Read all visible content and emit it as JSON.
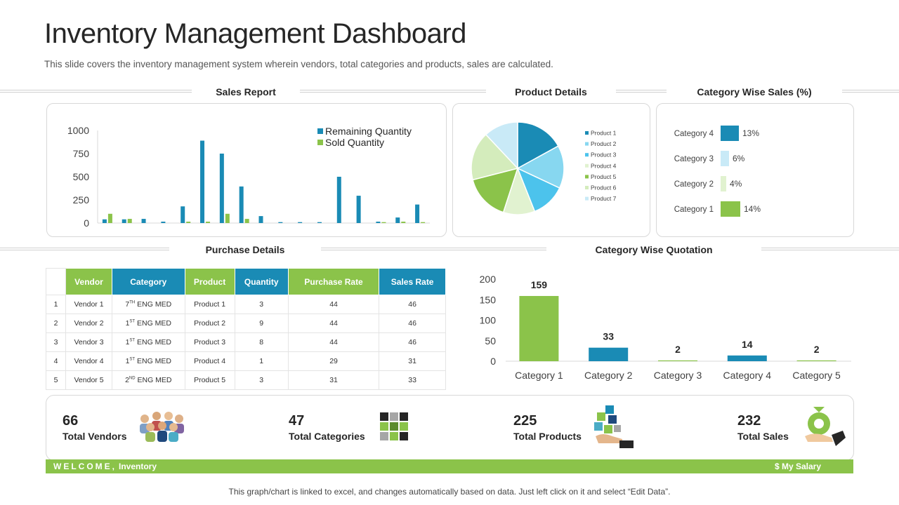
{
  "header": {
    "title": "Inventory Management Dashboard",
    "subtitle": "This slide covers the inventory management system wherein vendors, total categories and products, sales are calculated."
  },
  "sections": {
    "sales_report": "Sales Report",
    "product_details": "Product Details",
    "category_sales": "Category Wise Sales (%)",
    "purchase_details": "Purchase Details",
    "category_quotation": "Category Wise Quotation"
  },
  "colors": {
    "green": "#8bc34a",
    "blue": "#1a8bb5"
  },
  "chart_data": [
    {
      "type": "bar",
      "title": "",
      "ylim": [
        0,
        1000
      ],
      "yticks": [
        "1000",
        "750",
        "500",
        "250",
        "0"
      ],
      "legend_position": "top-right",
      "series": [
        {
          "name": "Remaining Quantity",
          "color": "#1a8bb5",
          "values": [
            40,
            40,
            45,
            15,
            180,
            890,
            750,
            395,
            75,
            10,
            10,
            10,
            500,
            295,
            15,
            60,
            200
          ]
        },
        {
          "name": "Sold Quantity",
          "color": "#8bc34a",
          "values": [
            100,
            45,
            0,
            0,
            15,
            15,
            100,
            45,
            0,
            0,
            0,
            0,
            0,
            0,
            10,
            15,
            10
          ]
        }
      ]
    },
    {
      "type": "pie",
      "legend_position": "right",
      "slices": [
        {
          "label": "Product 1",
          "value": 17,
          "color": "#1a8bb5"
        },
        {
          "label": "Product 2",
          "value": 15,
          "color": "#87d7f0"
        },
        {
          "label": "Product 3",
          "value": 12,
          "color": "#4cc3ec"
        },
        {
          "label": "Product 4",
          "value": 11,
          "color": "#e1f2d0"
        },
        {
          "label": "Product 5",
          "value": 16,
          "color": "#8bc34a"
        },
        {
          "label": "Product 6",
          "value": 17,
          "color": "#d4ecbc"
        },
        {
          "label": "Product 7",
          "value": 12,
          "color": "#c9eaf7"
        }
      ]
    },
    {
      "type": "bar",
      "orientation": "horizontal",
      "categories": [
        "Category 4",
        "Category 3",
        "Category 2",
        "Category 1"
      ],
      "values": [
        13,
        6,
        4,
        14
      ],
      "labels": [
        "13%",
        "6%",
        "4%",
        "14%"
      ],
      "colors": [
        "#1a8bb5",
        "#c9eaf7",
        "#e1f2d0",
        "#8bc34a"
      ]
    },
    {
      "type": "bar",
      "categories": [
        "Category 1",
        "Category 2",
        "Category 3",
        "Category 4",
        "Category 5"
      ],
      "values": [
        159,
        33,
        2,
        14,
        2
      ],
      "labels": [
        "159",
        "33",
        "2",
        "14",
        "2"
      ],
      "colors": [
        "#8bc34a",
        "#1a8bb5",
        "#8bc34a",
        "#1a8bb5",
        "#8bc34a"
      ],
      "ylim": [
        0,
        200
      ],
      "yticks": [
        "200",
        "150",
        "100",
        "50",
        "0"
      ]
    }
  ],
  "purchase_table": {
    "headers": [
      "Vendor",
      "Category",
      "Product",
      "Quantity",
      "Purchase Rate",
      "Sales Rate"
    ],
    "rows": [
      {
        "idx": "1",
        "vendor": "Vendor 1",
        "cat_num": "7",
        "cat_sup": "TH",
        "cat_rest": " ENG MED",
        "product": "Product 1",
        "quantity": "3",
        "purchase_rate": "44",
        "sales_rate": "46"
      },
      {
        "idx": "2",
        "vendor": "Vendor 2",
        "cat_num": "1",
        "cat_sup": "ST",
        "cat_rest": " ENG MED",
        "product": "Product 2",
        "quantity": "9",
        "purchase_rate": "44",
        "sales_rate": "46"
      },
      {
        "idx": "3",
        "vendor": "Vendor 3",
        "cat_num": "1",
        "cat_sup": "ST",
        "cat_rest": " ENG MED",
        "product": "Product 3",
        "quantity": "8",
        "purchase_rate": "44",
        "sales_rate": "46"
      },
      {
        "idx": "4",
        "vendor": "Vendor 4",
        "cat_num": "1",
        "cat_sup": "ST",
        "cat_rest": " ENG MED",
        "product": "Product 4",
        "quantity": "1",
        "purchase_rate": "29",
        "sales_rate": "31"
      },
      {
        "idx": "5",
        "vendor": "Vendor 5",
        "cat_num": "2",
        "cat_sup": "ND",
        "cat_rest": " ENG MED",
        "product": "Product 5",
        "quantity": "3",
        "purchase_rate": "31",
        "sales_rate": "33"
      }
    ]
  },
  "kpis": [
    {
      "value": "66",
      "label": "Total Vendors",
      "icon": "vendors-group-icon"
    },
    {
      "value": "47",
      "label": "Total Categories",
      "icon": "categories-grid-icon"
    },
    {
      "value": "225",
      "label": "Total Products",
      "icon": "products-cubes-icon"
    },
    {
      "value": "232",
      "label": "Total Sales",
      "icon": "money-bag-hand-icon"
    }
  ],
  "welcome_bar": {
    "welcome": "WELCOME,",
    "name": "Inventory",
    "right": "$ My Salary"
  },
  "footnote": "This graph/chart is linked to excel, and changes automatically based on data. Just left click on it and select “Edit Data”."
}
